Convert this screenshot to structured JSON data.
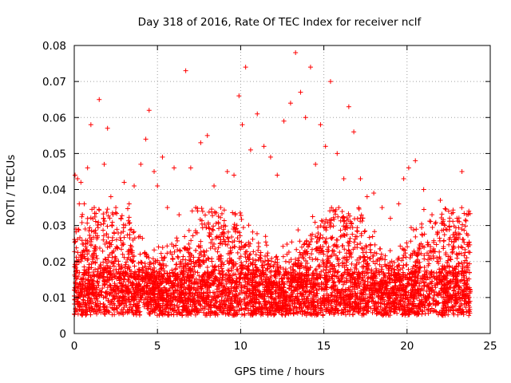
{
  "chart_data": {
    "type": "scatter",
    "title": "Day 318 of 2016, Rate Of TEC Index for receiver nclf",
    "xlabel": "GPS time / hours",
    "ylabel": "ROTI / TECUs",
    "xlim": [
      0,
      25
    ],
    "ylim": [
      0,
      0.08
    ],
    "xticks": [
      0,
      5,
      10,
      15,
      20,
      25
    ],
    "xtick_labels": [
      "0",
      "5",
      "10",
      "15",
      "20",
      "25"
    ],
    "yticks": [
      0,
      0.01,
      0.02,
      0.03,
      0.04,
      0.05,
      0.06,
      0.07,
      0.08
    ],
    "ytick_labels": [
      "0",
      "0.01",
      "0.02",
      "0.03",
      "0.04",
      "0.05",
      "0.06",
      "0.07",
      "0.08"
    ],
    "grid": true,
    "marker": "+",
    "marker_color": "#ff0000",
    "series": [
      {
        "name": "ROTI",
        "x": [
          0.05,
          0.1,
          0.2,
          0.3,
          0.4,
          0.6,
          0.8,
          1.0,
          1.2,
          1.5,
          1.8,
          2.0,
          2.2,
          2.5,
          2.8,
          3.0,
          3.3,
          3.6,
          4.0,
          4.3,
          4.5,
          4.8,
          5.0,
          5.3,
          5.6,
          6.0,
          6.3,
          6.7,
          7.0,
          7.3,
          7.6,
          8.0,
          8.4,
          8.8,
          9.2,
          9.6,
          9.9,
          10.1,
          10.3,
          10.6,
          11.0,
          11.4,
          11.8,
          12.2,
          12.6,
          13.0,
          13.3,
          13.6,
          13.9,
          14.2,
          14.5,
          14.8,
          15.1,
          15.4,
          15.8,
          16.2,
          16.5,
          16.8,
          17.2,
          17.6,
          18.0,
          18.5,
          19.0,
          19.5,
          19.8,
          20.1,
          20.5,
          21.0,
          21.5,
          22.0,
          22.5,
          23.0,
          23.3,
          23.6
        ],
        "y": [
          0.044,
          0.029,
          0.043,
          0.036,
          0.042,
          0.036,
          0.046,
          0.058,
          0.035,
          0.065,
          0.047,
          0.057,
          0.038,
          0.035,
          0.032,
          0.042,
          0.036,
          0.041,
          0.047,
          0.054,
          0.062,
          0.045,
          0.041,
          0.049,
          0.035,
          0.046,
          0.033,
          0.073,
          0.046,
          0.035,
          0.053,
          0.055,
          0.041,
          0.035,
          0.045,
          0.044,
          0.066,
          0.058,
          0.074,
          0.051,
          0.061,
          0.052,
          0.049,
          0.044,
          0.059,
          0.064,
          0.078,
          0.067,
          0.06,
          0.074,
          0.047,
          0.058,
          0.052,
          0.07,
          0.05,
          0.043,
          0.063,
          0.056,
          0.043,
          0.038,
          0.039,
          0.035,
          0.032,
          0.036,
          0.043,
          0.046,
          0.048,
          0.04,
          0.033,
          0.037,
          0.034,
          0.032,
          0.045,
          0.033
        ]
      }
    ]
  }
}
